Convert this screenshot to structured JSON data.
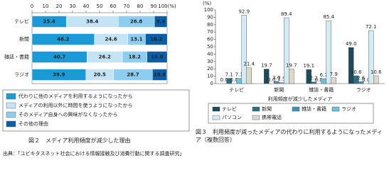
{
  "chart_data": [
    {
      "type": "hbar-stacked",
      "caption": "図２　メディア利用頻度が減少した理由",
      "categories": [
        "テレビ",
        "新聞",
        "雑誌・書籍",
        "ラジオ"
      ],
      "series": [
        {
          "name": "代わりに他のメディアを利用するようになったから",
          "color": "#1a9ad6",
          "values": [
            25.4,
            46.2,
            40.7,
            39.9
          ],
          "value_labels": [
            "25.4",
            "46.2",
            "40.7",
            "39.9"
          ]
        },
        {
          "name": "メディアの利用以外に時間を使うようになったから",
          "color": "#c4e3f5",
          "values": [
            38.4,
            24.6,
            26.2,
            20.5
          ],
          "value_labels": [
            "38.4",
            "24.6",
            "26.2",
            "20.5"
          ]
        },
        {
          "name": "そのメディア自身への興味がなくなったから",
          "color": "#8ccdf0",
          "values": [
            26.8,
            13.1,
            18.2,
            28.7
          ],
          "value_labels": [
            "26.8",
            "13.1",
            "18.2",
            "28.7"
          ]
        },
        {
          "name": "その他の理由",
          "color": "#0a5fa8",
          "values": [
            9.4,
            16.2,
            15.0,
            10.8
          ],
          "value_labels": [
            "9.4",
            "16.2",
            "15.0",
            "10.8"
          ]
        }
      ],
      "xlim": [
        0,
        100
      ],
      "xticks": [
        0,
        10,
        20,
        30,
        40,
        50,
        60,
        70,
        80,
        90,
        {
          "value": 100,
          "label": "100(%)"
        }
      ]
    },
    {
      "type": "bar-grouped",
      "caption": "図３　利用頻度が減ったメディアの代わりに利用するようになったメディア（複数回答）",
      "y_label": "(%)",
      "x_label": "利用頻度が減少したメディア",
      "categories": [
        "テレビ",
        "新聞",
        "雑誌・書籍",
        "ラジオ"
      ],
      "series": [
        {
          "name": "テレビ",
          "color": "#1d4a5c",
          "values": [
            0.0,
            19.7,
            19.1,
            49.0
          ],
          "value_labels": [
            "0.0",
            "19.7",
            "19.1",
            "49.0"
          ]
        },
        {
          "name": "新聞",
          "color": "#2a6f86",
          "values": [
            7.1,
            0.0,
            2.2,
            10.6
          ],
          "value_labels": [
            "7.1",
            "0.0",
            "2.2",
            "10.6"
          ]
        },
        {
          "name": "雑誌・書籍",
          "color": "#3c96b4",
          "values": [
            0.0,
            3.0,
            0.0,
            2.6
          ],
          "value_labels": [
            "0.0",
            "3.0",
            "0.0",
            "2.6"
          ]
        },
        {
          "name": "ラジオ",
          "color": "#6fc0dc",
          "values": [
            7.1,
            1.5,
            6.7,
            0.0
          ],
          "value_labels": [
            "7.1",
            "1.5",
            "6.7",
            "0.0"
          ]
        },
        {
          "name": "パソコン",
          "color": "#d2ecf6",
          "values": [
            92.9,
            89.4,
            85.4,
            72.1
          ],
          "value_labels": [
            "92.9",
            "89.4",
            "85.4",
            "72.1"
          ]
        },
        {
          "name": "携帯電話",
          "color": "#ddd8c8",
          "values": [
            21.4,
            19.7,
            7.9,
            10.6
          ],
          "value_labels": [
            "21.4",
            "19.7",
            "7.9",
            "10.6"
          ]
        }
      ],
      "ylim": [
        0,
        100
      ],
      "yticks": [
        0,
        10,
        20,
        30,
        40,
        50,
        60,
        70,
        80,
        90,
        100
      ]
    }
  ],
  "source": "出典：「ユビキタスネット社会における情報接触及び消費行動に関する調査研究」"
}
